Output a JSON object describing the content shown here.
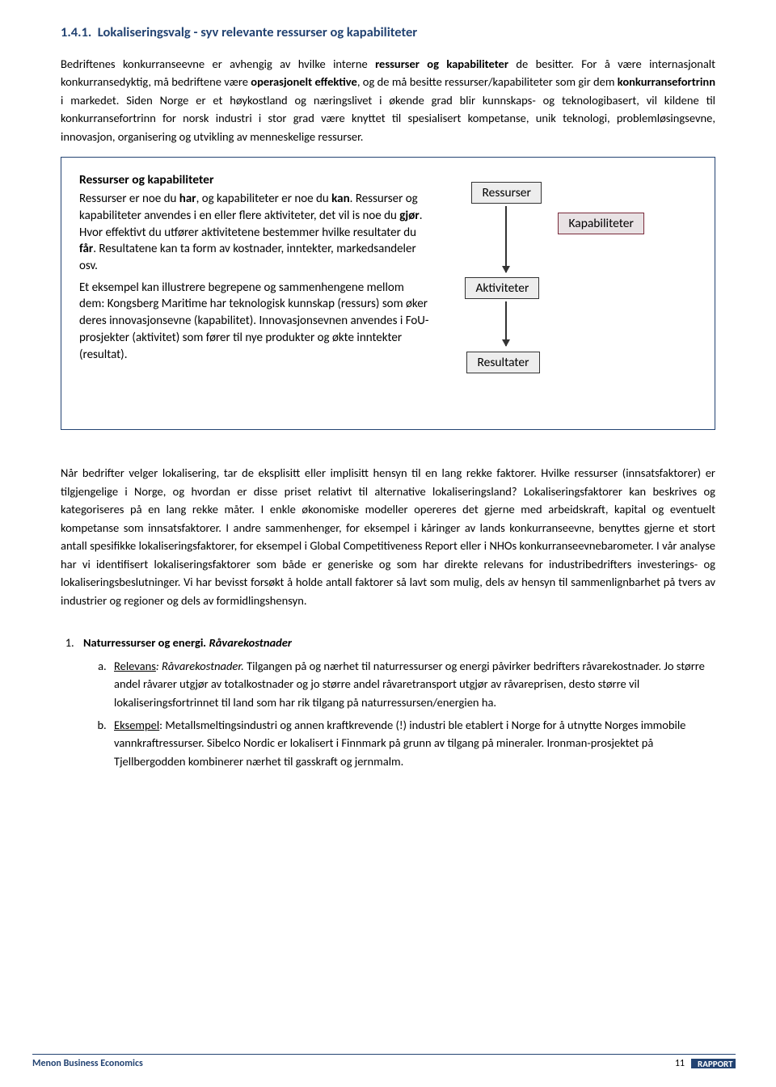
{
  "section_title": "1.4.1.  Lokaliseringsvalg - syv relevante ressurser og kapabiliteter",
  "para1_parts": [
    {
      "t": "Bedriftenes konkurranseevne er avhengig av hvilke interne ",
      "b": false
    },
    {
      "t": "ressurser og kapabiliteter",
      "b": true
    },
    {
      "t": " de besitter. For å være internasjonalt konkurransedyktig, må bedriftene være ",
      "b": false
    },
    {
      "t": "operasjonelt effektive",
      "b": true
    },
    {
      "t": ", og de må besitte ressurser/kapabiliteter som gir dem ",
      "b": false
    },
    {
      "t": "konkurransefortrinn",
      "b": true
    },
    {
      "t": " i markedet. Siden Norge er et høykostland og næringslivet i økende grad blir kunnskaps- og teknologibasert, vil kildene til konkurransefortrinn for norsk industri i stor grad være knyttet til spesialisert kompetanse, unik teknologi, problemløsingsevne, innovasjon, organisering og utvikling av menneskelige ressurser.",
      "b": false
    }
  ],
  "box": {
    "heading": "Ressurser og kapabiliteter",
    "p1_parts": [
      {
        "t": "Ressurser er noe du ",
        "b": false
      },
      {
        "t": "har",
        "b": true
      },
      {
        "t": ", og kapabiliteter er noe du ",
        "b": false
      },
      {
        "t": "kan",
        "b": true
      },
      {
        "t": ". Ressurser og kapabiliteter anvendes i en eller flere aktiviteter, det vil is noe du ",
        "b": false
      },
      {
        "t": "gjør",
        "b": true
      },
      {
        "t": ". Hvor effektivt du utfører aktivitetene bestemmer hvilke resultater du ",
        "b": false
      },
      {
        "t": "får",
        "b": true
      },
      {
        "t": ". Resultatene kan ta form av kostnader, inntekter, markedsandeler osv.",
        "b": false
      }
    ],
    "p2": "Et eksempel kan illustrere begrepene og sammenhengene mellom dem: Kongsberg Maritime har teknologisk kunnskap (ressurs) som øker deres innovasjonsevne (kapabilitet). Innovasjonsevnen anvendes i FoU-prosjekter (aktivitet) som fører til nye produkter og økte inntekter (resultat).",
    "nodes": {
      "ressurser": "Ressurser",
      "kapabiliteter": "Kapabiliteter",
      "aktiviteter": "Aktiviteter",
      "resultater": "Resultater"
    }
  },
  "para2": "Når bedrifter velger lokalisering, tar de eksplisitt eller implisitt hensyn til en lang rekke faktorer. Hvilke ressurser (innsatsfaktorer) er tilgjengelige i Norge, og hvordan er disse priset relativt til alternative lokaliseringsland? Lokaliseringsfaktorer kan beskrives og kategoriseres på en lang rekke måter. I enkle økonomiske modeller opereres det gjerne med arbeidskraft, kapital og eventuelt kompetanse som innsatsfaktorer. I andre sammenhenger, for eksempel i kåringer av lands konkurranseevne, benyttes gjerne et stort antall spesifikke lokaliseringsfaktorer, for eksempel i Global Competitiveness Report eller i NHOs konkurranseevnebarometer. I vår analyse har vi identifisert lokaliseringsfaktorer som både er generiske og som har direkte relevans for industribedrifters investerings- og lokaliseringsbeslutninger. Vi har bevisst forsøkt å holde antall faktorer så lavt som mulig, dels av hensyn til sammenlignbarhet på tvers av industrier og regioner og dels av formidlingshensyn.",
  "list": {
    "num": "1.",
    "head_bold": "Naturressurser og energi",
    "head_ital": ". Råvarekostnader",
    "a_lead": "Relevans",
    "a_ital": ": Råvarekostnader.",
    "a_rest": " Tilgangen på og nærhet til naturressurser og energi påvirker bedrifters råvarekostnader. Jo større andel råvarer utgjør av totalkostnader og jo større andel råvaretransport utgjør av råvareprisen, desto større vil lokaliseringsfortrinnet til land som har rik tilgang på naturressursen/energien ha.",
    "b_lead": "Eksempel",
    "b_rest": ": Metallsmeltingsindustri og annen kraftkrevende (!) industri ble etablert i Norge for å utnytte Norges immobile vannkraftressurser. Sibelco Nordic er lokalisert i Finnmark på grunn av tilgang på mineraler. Ironman-prosjektet på Tjellbergodden kombinerer nærhet til gasskraft og jernmalm."
  },
  "footer": {
    "left": "Menon Business Economics",
    "page": "11",
    "tag": "RAPPORT"
  }
}
